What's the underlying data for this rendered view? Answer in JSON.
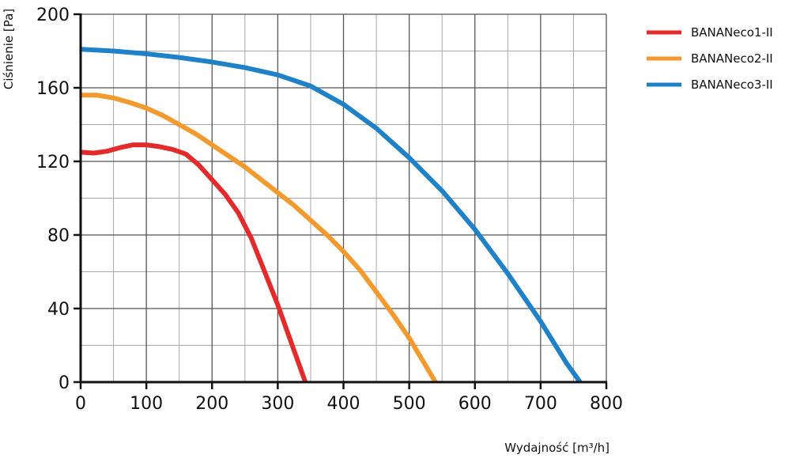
{
  "chart_data": {
    "type": "line",
    "xlabel": "Wydajność [m³/h]",
    "ylabel": "Ciśnienie [Pa]",
    "xlim": [
      0,
      800
    ],
    "ylim": [
      0,
      200
    ],
    "x_ticks": [
      0,
      100,
      200,
      300,
      400,
      500,
      600,
      700,
      800
    ],
    "y_ticks": [
      0,
      40,
      80,
      120,
      160,
      200
    ],
    "grid": true,
    "legend_position": "top-right",
    "series": [
      {
        "name": "BANANeco1-II",
        "color": "#e32b2b",
        "points": [
          [
            0,
            125
          ],
          [
            20,
            124.5
          ],
          [
            40,
            125.5
          ],
          [
            60,
            127.5
          ],
          [
            80,
            129
          ],
          [
            100,
            129
          ],
          [
            120,
            128
          ],
          [
            140,
            126.5
          ],
          [
            160,
            124
          ],
          [
            180,
            118
          ],
          [
            200,
            110
          ],
          [
            220,
            102
          ],
          [
            240,
            92
          ],
          [
            260,
            78
          ],
          [
            280,
            60
          ],
          [
            300,
            42
          ],
          [
            320,
            22
          ],
          [
            342,
            0
          ]
        ]
      },
      {
        "name": "BANANeco2-II",
        "color": "#f39a2e",
        "points": [
          [
            0,
            156
          ],
          [
            25,
            156
          ],
          [
            50,
            154.5
          ],
          [
            75,
            152
          ],
          [
            100,
            149
          ],
          [
            125,
            145
          ],
          [
            150,
            140
          ],
          [
            175,
            135
          ],
          [
            200,
            129
          ],
          [
            225,
            123
          ],
          [
            250,
            117
          ],
          [
            275,
            110
          ],
          [
            300,
            103
          ],
          [
            325,
            96
          ],
          [
            350,
            88
          ],
          [
            375,
            80
          ],
          [
            400,
            71
          ],
          [
            425,
            61
          ],
          [
            450,
            49
          ],
          [
            475,
            37
          ],
          [
            500,
            24
          ],
          [
            520,
            12
          ],
          [
            540,
            0
          ]
        ]
      },
      {
        "name": "BANANeco3-II",
        "color": "#1f82c8",
        "points": [
          [
            0,
            181
          ],
          [
            50,
            180
          ],
          [
            100,
            178.5
          ],
          [
            150,
            176.5
          ],
          [
            200,
            174
          ],
          [
            250,
            171
          ],
          [
            300,
            167
          ],
          [
            350,
            161
          ],
          [
            400,
            151
          ],
          [
            450,
            138
          ],
          [
            500,
            122
          ],
          [
            550,
            104
          ],
          [
            600,
            83
          ],
          [
            650,
            59
          ],
          [
            700,
            33
          ],
          [
            740,
            10
          ],
          [
            760,
            0
          ]
        ]
      }
    ]
  }
}
